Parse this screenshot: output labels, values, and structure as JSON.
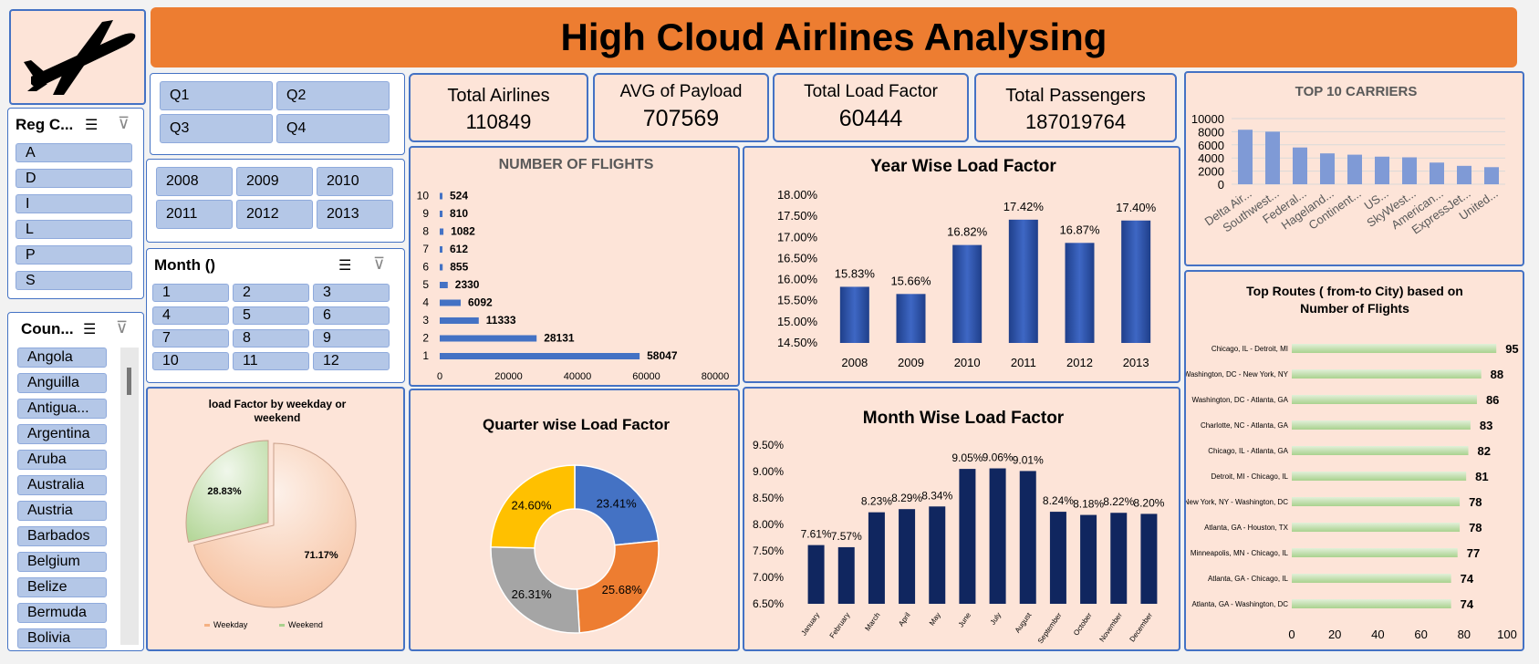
{
  "title": "High Cloud Airlines Analysing",
  "kpis": [
    {
      "label": "Total Airlines",
      "value": "110849"
    },
    {
      "label": "AVG of Payload",
      "value": "707569"
    },
    {
      "label": "Total Load Factor",
      "value": "60444"
    },
    {
      "label": "Total Passengers",
      "value": "187019764"
    }
  ],
  "slicers": {
    "quarter": {
      "items": [
        "Q1",
        "Q2",
        "Q3",
        "Q4"
      ]
    },
    "year": {
      "items": [
        "2008",
        "2009",
        "2010",
        "2011",
        "2012",
        "2013"
      ]
    },
    "month": {
      "header": "Month ()",
      "items": [
        "1",
        "2",
        "3",
        "4",
        "5",
        "6",
        "7",
        "8",
        "9",
        "10",
        "11",
        "12"
      ]
    },
    "region": {
      "header": "Reg C...",
      "items": [
        "A",
        "D",
        "I",
        "L",
        "P",
        "S"
      ]
    },
    "country": {
      "header": "Coun...",
      "items": [
        "Angola",
        "Anguilla",
        "Antigua...",
        "Argentina",
        "Aruba",
        "Australia",
        "Austria",
        "Barbados",
        "Belgium",
        "Belize",
        "Bermuda",
        "Bolivia"
      ]
    }
  },
  "colors": {
    "accent": "#ed7d31",
    "border": "#4472c4",
    "panel": "#fde4d8",
    "slicer": "#b4c7e7",
    "navy": "#10265f",
    "bar": "#4472c4",
    "green": "#c5e0b4"
  },
  "chart_data": [
    {
      "id": "flights",
      "type": "bar",
      "orientation": "horizontal",
      "title": "NUMBER OF FLIGHTS",
      "categories": [
        "1",
        "2",
        "3",
        "4",
        "5",
        "6",
        "7",
        "8",
        "9",
        "10"
      ],
      "values": [
        58047,
        28131,
        11333,
        6092,
        2330,
        855,
        612,
        1082,
        810,
        524
      ],
      "labels": [
        "58047",
        "28131",
        "11333",
        "6092",
        "2330",
        "855",
        "612",
        "1082",
        "810",
        "524"
      ],
      "xticks": [
        "0",
        "20000",
        "40000",
        "60000",
        "80000"
      ],
      "xlim": [
        0,
        80000
      ]
    },
    {
      "id": "year",
      "type": "bar",
      "title": "Year Wise Load Factor",
      "categories": [
        "2008",
        "2009",
        "2010",
        "2011",
        "2012",
        "2013"
      ],
      "values": [
        15.83,
        15.66,
        16.82,
        17.42,
        16.87,
        17.4
      ],
      "labels": [
        "15.83%",
        "15.66%",
        "16.82%",
        "17.42%",
        "16.87%",
        "17.40%"
      ],
      "yticks": [
        "18.00%",
        "17.50%",
        "17.00%",
        "16.50%",
        "16.00%",
        "15.50%",
        "15.00%",
        "14.50%"
      ],
      "ylim": [
        14.5,
        18
      ]
    },
    {
      "id": "carriers",
      "type": "bar",
      "title": "TOP 10 CARRIERS",
      "categories": [
        "Delta Air...",
        "Southwest...",
        "Federal...",
        "Hageland...",
        "Continent...",
        "US...",
        "SkyWest...",
        "American...",
        "ExpressJet...",
        "United..."
      ],
      "values": [
        8300,
        8000,
        5600,
        4700,
        4500,
        4200,
        4100,
        3300,
        2800,
        2600
      ],
      "yticks": [
        "10000",
        "8000",
        "6000",
        "4000",
        "2000",
        "0"
      ],
      "ylim": [
        0,
        10000
      ]
    },
    {
      "id": "routes",
      "type": "bar",
      "orientation": "horizontal",
      "title": "Top Routes ( from-to City) based on Number of Flights",
      "categories": [
        "Chicago, IL - Detroit, MI",
        "Washington, DC - New York, NY",
        "Washington, DC - Atlanta, GA",
        "Charlotte, NC - Atlanta, GA",
        "Chicago, IL - Atlanta, GA",
        "Detroit, MI - Chicago, IL",
        "New York, NY - Washington, DC",
        "Atlanta, GA - Houston, TX",
        "Minneapolis, MN - Chicago, IL",
        "Atlanta, GA - Chicago, IL",
        "Atlanta, GA - Washington, DC"
      ],
      "values": [
        95,
        88,
        86,
        83,
        82,
        81,
        78,
        78,
        77,
        74,
        74
      ],
      "labels": [
        "95",
        "88",
        "86",
        "83",
        "82",
        "81",
        "78",
        "78",
        "77",
        "74",
        "74"
      ],
      "xticks": [
        "0",
        "20",
        "40",
        "60",
        "80",
        "100"
      ],
      "xlim": [
        0,
        100
      ]
    },
    {
      "id": "weekday",
      "type": "pie",
      "title": "load Factor by weekday or weekend",
      "categories": [
        "Weekday",
        "Weekend"
      ],
      "values": [
        71.17,
        28.83
      ],
      "labels": [
        "71.17%",
        "28.83%"
      ]
    },
    {
      "id": "quarter",
      "type": "pie",
      "subtype": "donut",
      "title": "Quarter wise Load Factor",
      "values": [
        23.41,
        25.68,
        26.31,
        24.6
      ],
      "labels": [
        "23.41%",
        "25.68%",
        "26.31%",
        "24.60%"
      ],
      "colors": [
        "#4472c4",
        "#ed7d31",
        "#a5a5a5",
        "#ffc000"
      ]
    },
    {
      "id": "month",
      "type": "bar",
      "title": "Month Wise Load Factor",
      "categories": [
        "January",
        "February",
        "March",
        "April",
        "May",
        "June",
        "July",
        "August",
        "September",
        "October",
        "November",
        "December"
      ],
      "values": [
        7.61,
        7.57,
        8.23,
        8.29,
        8.34,
        9.05,
        9.06,
        9.01,
        8.24,
        8.18,
        8.22,
        8.2
      ],
      "labels": [
        "7.61%",
        "7.57%",
        "8.23%",
        "8.29%",
        "8.34%",
        "9.05%",
        "9.06%",
        "9.01%",
        "8.24%",
        "8.18%",
        "8.22%",
        "8.20%"
      ],
      "yticks": [
        "9.50%",
        "9.00%",
        "8.50%",
        "8.00%",
        "7.50%",
        "7.00%",
        "6.50%"
      ],
      "ylim": [
        6.5,
        9.5
      ]
    }
  ]
}
